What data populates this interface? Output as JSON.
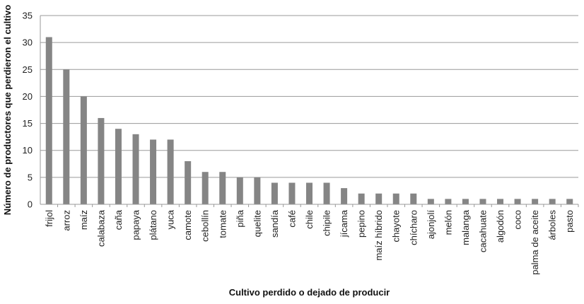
{
  "chart_data": {
    "type": "bar",
    "title": "",
    "xlabel": "Cultivo perdido o dejado de producir",
    "ylabel": "Número de productores que perdieron el cultivo",
    "ylim": [
      0,
      35
    ],
    "yticks": [
      0,
      5,
      10,
      15,
      20,
      25,
      30,
      35
    ],
    "grid": true,
    "legend": "none",
    "bar_color": "#858585",
    "categories": [
      "frijol",
      "arroz",
      "maíz",
      "calabaza",
      "caña",
      "papaya",
      "plátano",
      "yuca",
      "camote",
      "cebollín",
      "tomate",
      "piña",
      "quelite",
      "sandía",
      "café",
      "chile",
      "chipile",
      "jícama",
      "pepino",
      "maíz híbrido",
      "chayote",
      "chícharo",
      "ajonjolí",
      "melón",
      "malanga",
      "cacahuate",
      "algodón",
      "coco",
      "palma de aceite",
      "árboles",
      "pasto"
    ],
    "values": [
      31,
      25,
      20,
      16,
      14,
      13,
      12,
      12,
      8,
      6,
      6,
      5,
      5,
      4,
      4,
      4,
      4,
      3,
      2,
      2,
      2,
      2,
      1,
      1,
      1,
      1,
      1,
      1,
      1,
      1,
      1
    ]
  }
}
